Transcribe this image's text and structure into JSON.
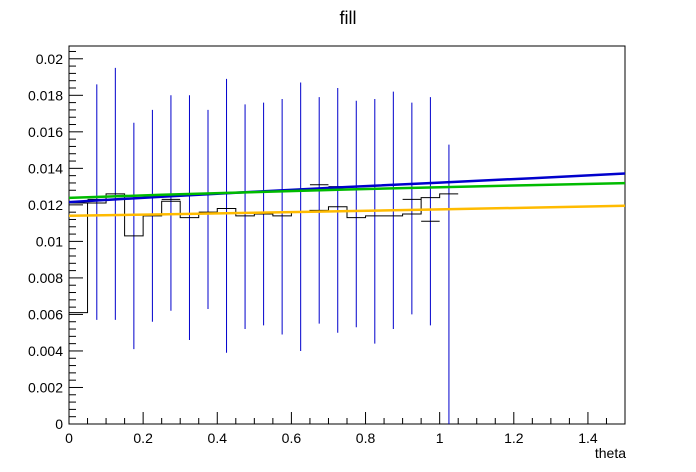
{
  "chart_data": {
    "type": "line",
    "title": "fill",
    "xlabel": "theta",
    "ylabel": "",
    "xlim": [
      0,
      1.5
    ],
    "ylim": [
      0,
      0.0207
    ],
    "grid": false,
    "x_tick_labels": [
      "0",
      "0.2",
      "0.4",
      "0.6",
      "0.8",
      "1",
      "1.2",
      "1.4"
    ],
    "y_tick_labels": [
      "0",
      "0.002",
      "0.004",
      "0.006",
      "0.008",
      "0.01",
      "0.012",
      "0.014",
      "0.016",
      "0.018",
      "0.02"
    ],
    "histogram": {
      "color": "#000000",
      "error_color": "#0000cc",
      "bin_width": 0.05,
      "bins": [
        {
          "x": 0.0,
          "y": 0.0061,
          "err_lo": 0.0061,
          "err_hi": 0.0061
        },
        {
          "x": 0.05,
          "y": 0.0121,
          "err_lo": 0.0057,
          "err_hi": 0.0186
        },
        {
          "x": 0.1,
          "y": 0.0126,
          "err_lo": 0.0057,
          "err_hi": 0.0195
        },
        {
          "x": 0.15,
          "y": 0.0103,
          "err_lo": 0.0041,
          "err_hi": 0.0165
        },
        {
          "x": 0.2,
          "y": 0.0114,
          "err_lo": 0.0056,
          "err_hi": 0.0172
        },
        {
          "x": 0.25,
          "y": 0.0122,
          "err_lo": 0.0062,
          "err_hi": 0.018
        },
        {
          "x": 0.3,
          "y": 0.0113,
          "err_lo": 0.0046,
          "err_hi": 0.018
        },
        {
          "x": 0.35,
          "y": 0.0115,
          "err_lo": 0.0063,
          "err_hi": 0.0172
        },
        {
          "x": 0.4,
          "y": 0.0118,
          "err_lo": 0.0039,
          "err_hi": 0.0189
        },
        {
          "x": 0.45,
          "y": 0.0114,
          "err_lo": 0.0052,
          "err_hi": 0.0175
        },
        {
          "x": 0.5,
          "y": 0.0115,
          "err_lo": 0.0054,
          "err_hi": 0.0176
        },
        {
          "x": 0.55,
          "y": 0.0114,
          "err_lo": 0.0049,
          "err_hi": 0.0178
        },
        {
          "x": 0.6,
          "y": 0.0116,
          "err_lo": 0.004,
          "err_hi": 0.0187
        },
        {
          "x": 0.65,
          "y": 0.0117,
          "err_lo": 0.0055,
          "err_hi": 0.0179
        },
        {
          "x": 0.7,
          "y": 0.0119,
          "err_lo": 0.005,
          "err_hi": 0.0184
        },
        {
          "x": 0.75,
          "y": 0.0113,
          "err_lo": 0.0053,
          "err_hi": 0.0177
        },
        {
          "x": 0.8,
          "y": 0.0114,
          "err_lo": 0.0044,
          "err_hi": 0.0178
        },
        {
          "x": 0.85,
          "y": 0.0114,
          "err_lo": 0.0052,
          "err_hi": 0.0182
        },
        {
          "x": 0.9,
          "y": 0.0115,
          "err_lo": 0.006,
          "err_hi": 0.0176
        },
        {
          "x": 0.95,
          "y": 0.0124,
          "err_lo": 0.0054,
          "err_hi": 0.0179
        },
        {
          "x": 1.0,
          "y": 0.0126,
          "err_lo": 0.0,
          "err_hi": 0.0153
        }
      ],
      "overlay_bins_x_right": [
        {
          "x0": 0.0,
          "x1": 0.05,
          "y": 0.0121
        },
        {
          "x0": 0.05,
          "x1": 0.1,
          "y": 0.0123
        },
        {
          "x0": 0.25,
          "x1": 0.3,
          "y": 0.0123
        },
        {
          "x0": 0.35,
          "x1": 0.4,
          "y": 0.0116
        },
        {
          "x0": 0.65,
          "x1": 0.7,
          "y": 0.0131
        },
        {
          "x0": 0.7,
          "x1": 0.75,
          "y": 0.013
        },
        {
          "x0": 0.9,
          "x1": 0.95,
          "y": 0.0123
        },
        {
          "x0": 0.95,
          "x1": 1.0,
          "y": 0.0111
        }
      ]
    },
    "series": [
      {
        "color": "#0000cc",
        "x": [
          0.0,
          0.25,
          0.5,
          0.75,
          1.0,
          1.25,
          1.5
        ],
        "values": [
          0.01215,
          0.01245,
          0.01272,
          0.01298,
          0.01322,
          0.01346,
          0.01372
        ]
      },
      {
        "color": "#00bb00",
        "x": [
          0.0,
          0.25,
          0.5,
          0.75,
          1.0,
          1.25,
          1.5
        ],
        "values": [
          0.01238,
          0.01255,
          0.0127,
          0.01284,
          0.01297,
          0.01308,
          0.01319
        ]
      },
      {
        "color": "#ffbb00",
        "x": [
          0.0,
          0.25,
          0.5,
          0.75,
          1.0,
          1.25,
          1.5
        ],
        "values": [
          0.0114,
          0.01148,
          0.01157,
          0.01166,
          0.01175,
          0.01185,
          0.01195
        ]
      }
    ]
  }
}
